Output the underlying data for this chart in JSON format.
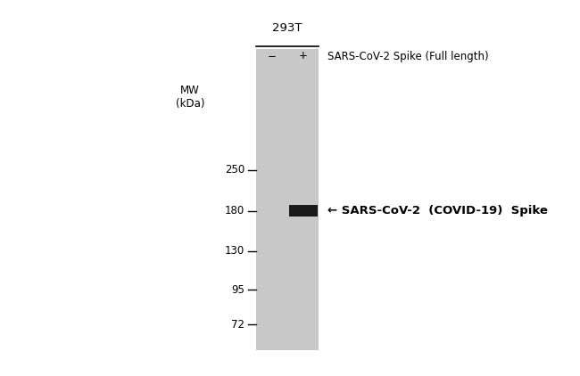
{
  "background_color": "#ffffff",
  "gel_color": "#c8c8c8",
  "band_color": "#1a1a1a",
  "mw_label": "MW\n(kDa)",
  "cell_line_label": "293T",
  "minus_label": "−",
  "plus_label": "+",
  "lane_label": "SARS-CoV-2 Spike (Full length)",
  "band_annotation": "← SARS-CoV-2  (COVID-19)  Spike",
  "mw_ticks": [
    {
      "label": "250",
      "kda": 250
    },
    {
      "label": "180",
      "kda": 180
    },
    {
      "label": "130",
      "kda": 130
    },
    {
      "label": "95",
      "kda": 95
    },
    {
      "label": "72",
      "kda": 72
    }
  ],
  "font_size_small": 8.5,
  "font_size_annotation": 9.5,
  "font_size_cell_line": 9.5,
  "font_size_mw_label": 8.5
}
